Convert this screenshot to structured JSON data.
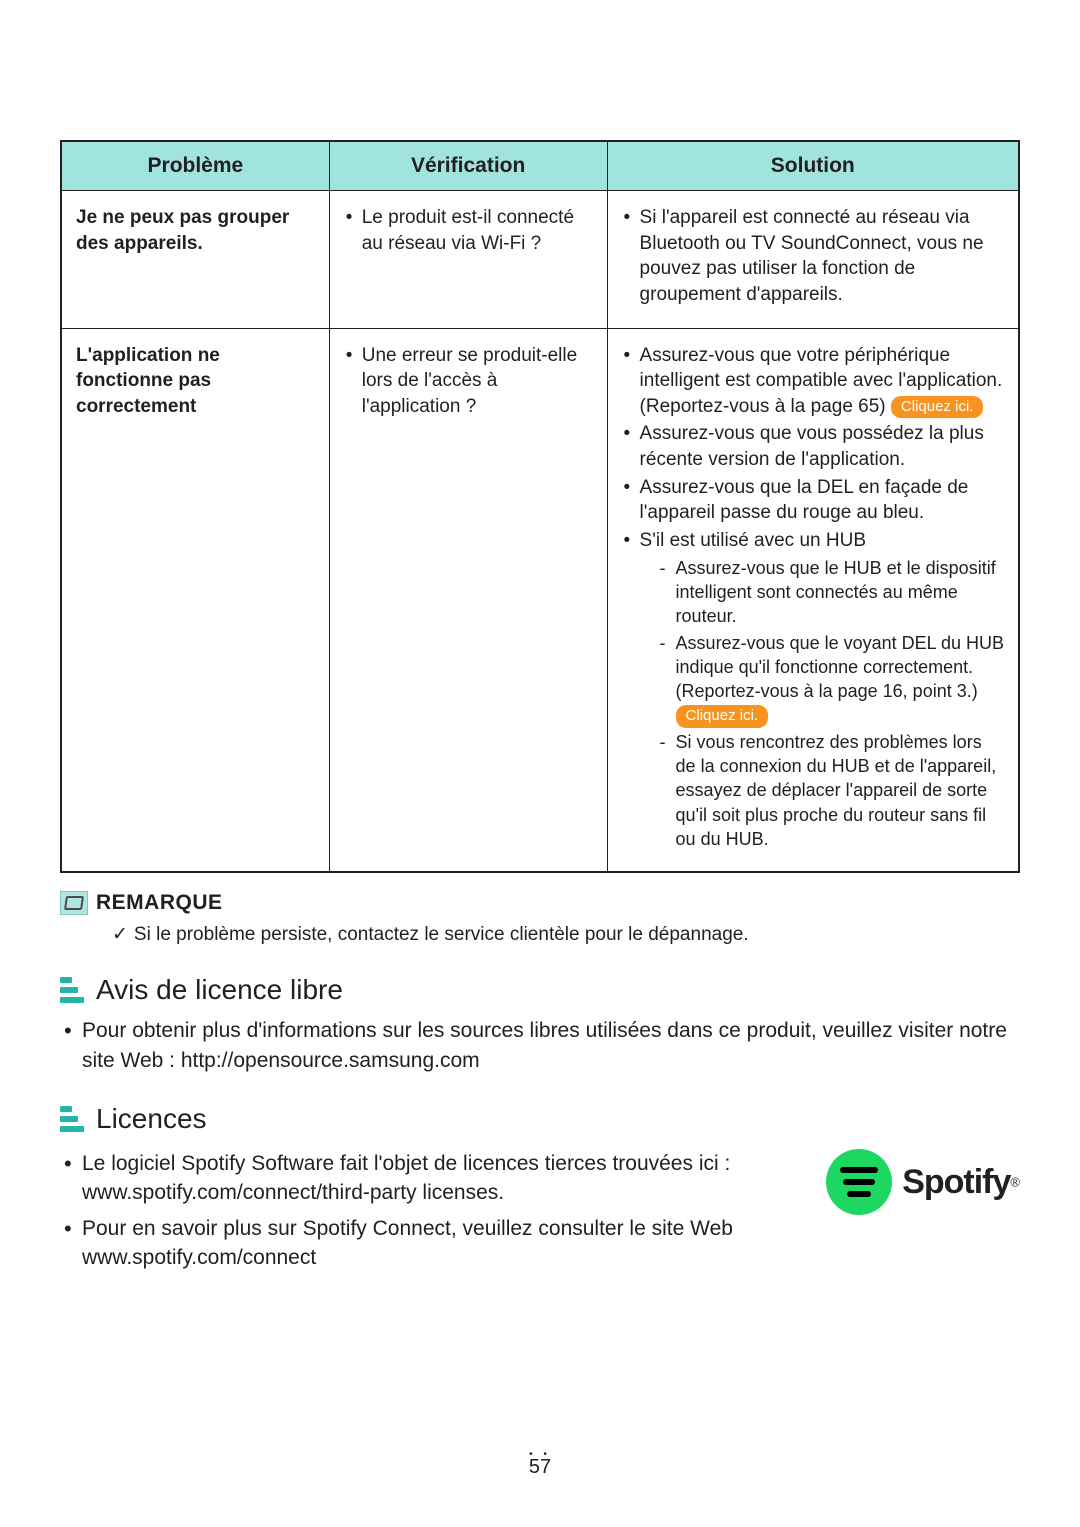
{
  "table": {
    "header_bg": "#a1e3df",
    "border_color": "#231f20",
    "headers": [
      "Problème",
      "Vérification",
      "Solution"
    ],
    "rows": [
      {
        "problem": "Je ne peux pas grouper des appareils.",
        "verification": [
          "Le produit est-il connecté au réseau via Wi-Fi ?"
        ],
        "solution_bullets": [
          {
            "text": "Si l'appareil est connecté au réseau via Bluetooth ou TV SoundConnect, vous ne pouvez pas utiliser la fonction de groupement d'appareils."
          }
        ]
      },
      {
        "problem": "L'application ne fonctionne pas correctement",
        "verification": [
          "Une erreur se produit-elle lors de l'accès à l'application ?"
        ],
        "solution_bullets": [
          {
            "text_before": "Assurez-vous que votre périphérique intelligent est compatible avec l'application. (Reportez-vous à la page 65)",
            "link": "Cliquez ici."
          },
          {
            "text": "Assurez-vous que vous possédez la plus récente version de l'application."
          },
          {
            "text": "Assurez-vous que la DEL en façade de l'appareil passe du rouge au bleu."
          },
          {
            "text": "S'il est utilisé avec un HUB",
            "sub": [
              {
                "text": "Assurez-vous que le HUB et le dispositif intelligent sont connectés au même routeur."
              },
              {
                "text_before": "Assurez-vous que le voyant DEL du HUB indique qu'il fonctionne correctement. (Reportez-vous à la page 16, point 3.)",
                "link": "Cliquez ici."
              },
              {
                "text": "Si vous rencontrez des problèmes lors de la connexion du HUB et de l'appareil, essayez de déplacer l'appareil de sorte qu'il soit plus proche du routeur sans fil ou du HUB."
              }
            ]
          }
        ]
      }
    ]
  },
  "remark": {
    "title": "REMARQUE",
    "body": "Si le problème persiste, contactez le service clientèle pour le dépannage."
  },
  "section_avis": {
    "title": "Avis de licence libre",
    "items": [
      "Pour obtenir plus d'informations sur les sources libres utilisées dans ce produit, veuillez visiter notre site Web : http://opensource.samsung.com"
    ]
  },
  "section_licences": {
    "title": "Licences",
    "items": [
      "Le logiciel Spotify Software fait l'objet de licences tierces trouvées ici : www.spotify.com/connect/third-party licenses.",
      "Pour en savoir plus sur Spotify Connect, veuillez consulter le site Web www.spotify.com/connect"
    ]
  },
  "spotify": {
    "word": "Spotify",
    "reg": "®"
  },
  "link_label": "Cliquez ici.",
  "link_bg": "#f7931e",
  "link_fg": "#ffffff",
  "spotify_green": "#1ed760",
  "accent_teal": "#21b6a8",
  "page_number": "57"
}
